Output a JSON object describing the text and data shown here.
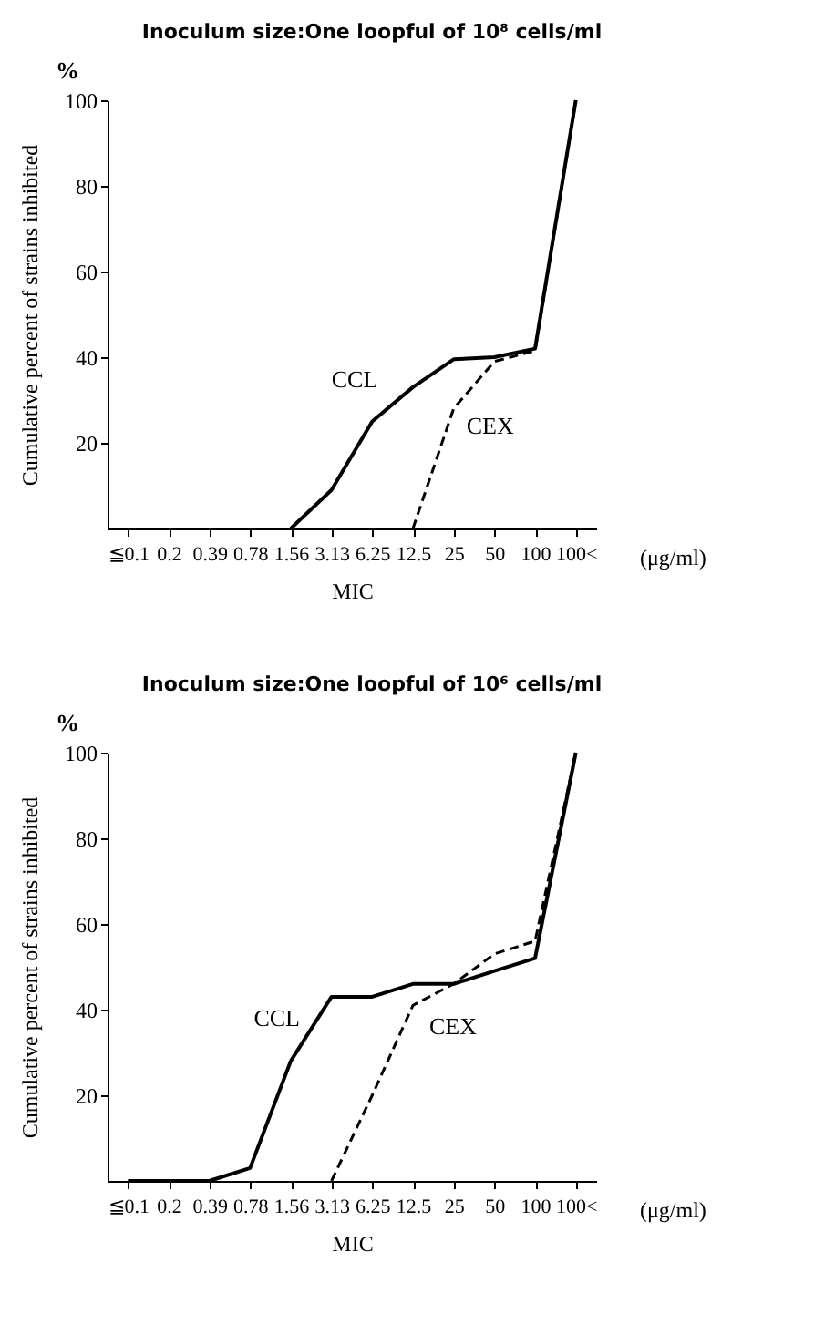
{
  "chart_data": [
    {
      "type": "line",
      "title": "Inoculum size:One loopful of 10⁸ cells/ml",
      "xlabel": "MIC",
      "ylabel": "Cumulative percent of strains inhibited",
      "annotations": [
        "%",
        "(μg/ml)"
      ],
      "categories": [
        "≦0.1",
        "0.2",
        "0.39",
        "0.78",
        "1.56",
        "3.13",
        "6.25",
        "12.5",
        "25",
        "50",
        "100",
        "100<"
      ],
      "ylim": [
        0,
        100
      ],
      "yticks": [
        20,
        40,
        60,
        80,
        100
      ],
      "series": [
        {
          "name": "CCL",
          "color": "#000000",
          "line_style": "solid",
          "values": [
            null,
            null,
            null,
            null,
            0,
            9,
            25,
            33,
            39.5,
            40,
            42,
            100
          ]
        },
        {
          "name": "CEX",
          "color": "#000000",
          "line_style": "dashed",
          "values": [
            null,
            null,
            null,
            null,
            null,
            null,
            null,
            0,
            28,
            39,
            41.5,
            100
          ]
        }
      ]
    },
    {
      "type": "line",
      "title": "Inoculum size:One loopful of 10⁶ cells/ml",
      "xlabel": "MIC",
      "ylabel": "Cumulative percent of strains inhibited",
      "annotations": [
        "%",
        "(μg/ml)"
      ],
      "categories": [
        "≦0.1",
        "0.2",
        "0.39",
        "0.78",
        "1.56",
        "3.13",
        "6.25",
        "12.5",
        "25",
        "50",
        "100",
        "100<"
      ],
      "ylim": [
        0,
        100
      ],
      "yticks": [
        20,
        40,
        60,
        80,
        100
      ],
      "series": [
        {
          "name": "CCL",
          "color": "#000000",
          "line_style": "solid",
          "values": [
            0,
            0,
            0,
            3,
            28,
            43,
            43,
            46,
            46,
            49,
            52,
            100
          ]
        },
        {
          "name": "CEX",
          "color": "#000000",
          "line_style": "dashed",
          "values": [
            null,
            null,
            null,
            null,
            null,
            0,
            20,
            41,
            46,
            53,
            56,
            100
          ]
        }
      ]
    }
  ]
}
